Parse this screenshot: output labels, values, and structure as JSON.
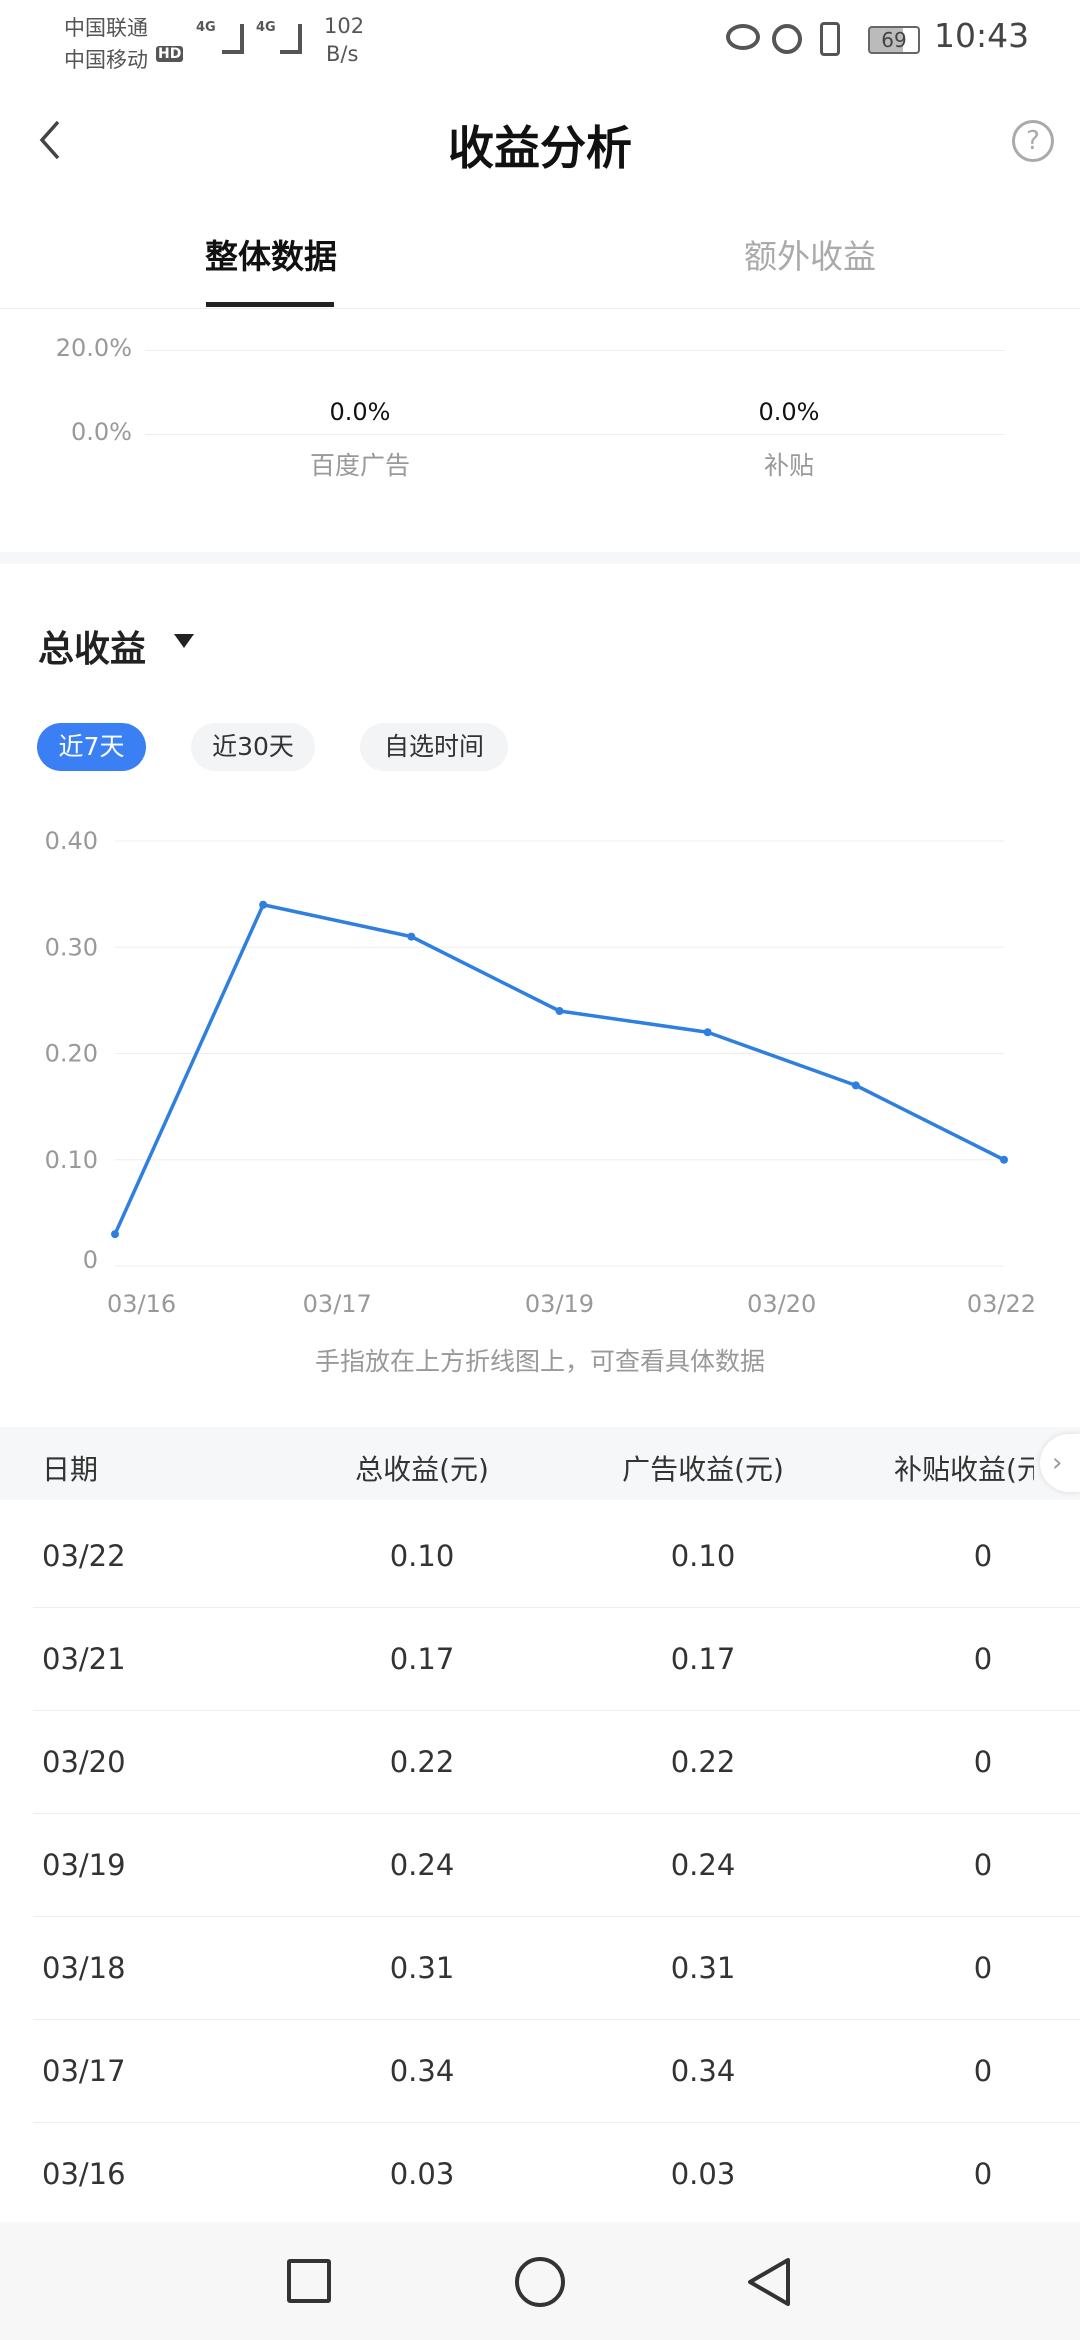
{
  "status_bar": {
    "carrier1": "中国联通",
    "carrier2": "中国移动",
    "hd": "HD",
    "net1": "4G",
    "net2": "4G",
    "speed": "102",
    "speed_unit": "B/s",
    "battery": "69",
    "time": "10:43"
  },
  "header": {
    "title": "收益分析"
  },
  "tabs": [
    {
      "label": "整体数据",
      "active": true
    },
    {
      "label": "额外收益",
      "active": false
    }
  ],
  "share_chart": {
    "y_ticks": [
      "20.0%",
      "0.0%"
    ],
    "items": [
      {
        "label": "百度广告",
        "value": "0.0%"
      },
      {
        "label": "补贴",
        "value": "0.0%"
      }
    ]
  },
  "section": {
    "title": "总收益"
  },
  "ranges": [
    {
      "label": "近7天",
      "active": true
    },
    {
      "label": "近30天",
      "active": false
    },
    {
      "label": "自选时间",
      "active": false
    }
  ],
  "chart_data": {
    "type": "line",
    "categories": [
      "03/16",
      "03/17",
      "03/18",
      "03/19",
      "03/20",
      "03/21",
      "03/22"
    ],
    "x_tick_labels": [
      "03/16",
      "03/17",
      "03/19",
      "03/20",
      "03/22"
    ],
    "y_ticks": [
      "0",
      "0.10",
      "0.20",
      "0.30",
      "0.40"
    ],
    "ylim": [
      0,
      0.4
    ],
    "values": [
      0.03,
      0.34,
      0.31,
      0.24,
      0.22,
      0.17,
      0.1
    ],
    "color": "#2f7fe0",
    "grid": true
  },
  "hint": "手指放在上方折线图上，可查看具体数据",
  "table": {
    "headers": [
      "日期",
      "总收益(元)",
      "广告收益(元)",
      "补贴收益(元)"
    ],
    "rows": [
      [
        "03/22",
        "0.10",
        "0.10",
        "0"
      ],
      [
        "03/21",
        "0.17",
        "0.17",
        "0"
      ],
      [
        "03/20",
        "0.22",
        "0.22",
        "0"
      ],
      [
        "03/19",
        "0.24",
        "0.24",
        "0"
      ],
      [
        "03/18",
        "0.31",
        "0.31",
        "0"
      ],
      [
        "03/17",
        "0.34",
        "0.34",
        "0"
      ],
      [
        "03/16",
        "0.03",
        "0.03",
        "0"
      ]
    ]
  }
}
